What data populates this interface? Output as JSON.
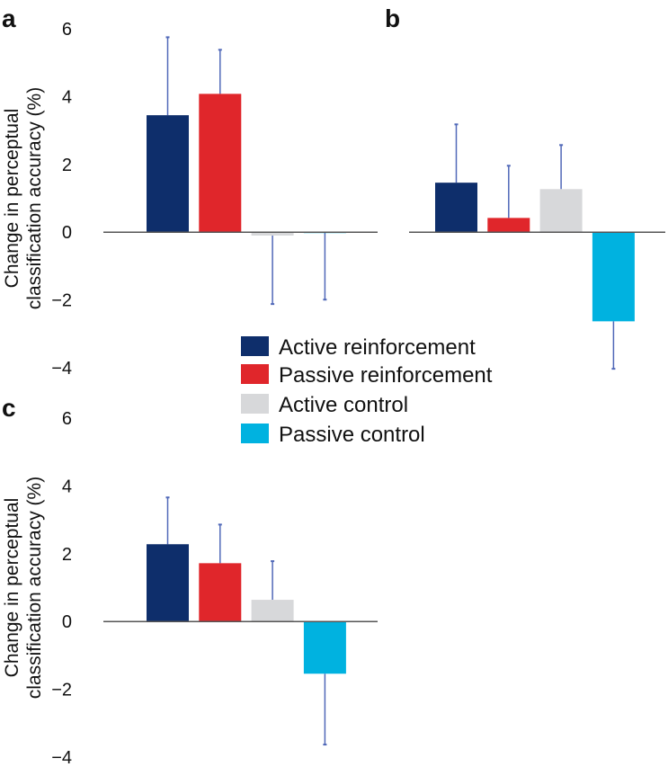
{
  "colors": {
    "Active reinforcement": "#0e2e6b",
    "Passive reinforcement": "#e0262b",
    "Active control": "#d7d8da",
    "Passive control": "#00b2e0",
    "error": "#5068b8",
    "axis": "#555555"
  },
  "ylabel_lines": [
    "Change in perceptual",
    "classification accuracy (%)"
  ],
  "legend": [
    "Active reinforcement",
    "Passive reinforcement",
    "Active control",
    "Passive control"
  ],
  "chart_data": [
    {
      "type": "bar",
      "panel": "a",
      "title": "a",
      "ylabel": "Change in perceptual classification accuracy (%)",
      "ylim": [
        -4,
        6
      ],
      "yticks": [
        "6",
        "4",
        "2",
        "0",
        "−2",
        "−4"
      ],
      "categories": [
        "Active reinforcement",
        "Passive reinforcement",
        "Active control",
        "Passive control"
      ],
      "values": [
        3.45,
        4.08,
        -0.1,
        0.0
      ],
      "error_ends": [
        5.75,
        5.38,
        -2.12,
        -1.99
      ]
    },
    {
      "type": "bar",
      "panel": "b",
      "title": "b",
      "ylim": [
        -4,
        6
      ],
      "categories": [
        "Active reinforcement",
        "Passive reinforcement",
        "Active control",
        "Passive control"
      ],
      "values": [
        1.46,
        0.42,
        1.27,
        -2.63
      ],
      "error_ends": [
        3.18,
        1.96,
        2.57,
        -4.03
      ]
    },
    {
      "type": "bar",
      "panel": "c",
      "title": "c",
      "ylabel": "Change in perceptual classification accuracy (%)",
      "ylim": [
        -4,
        6
      ],
      "yticks": [
        "6",
        "4",
        "2",
        "0",
        "−2",
        "−4"
      ],
      "categories": [
        "Active reinforcement",
        "Passive reinforcement",
        "Active control",
        "Passive control"
      ],
      "values": [
        2.28,
        1.72,
        0.64,
        -1.54
      ],
      "error_ends": [
        3.66,
        2.86,
        1.78,
        -3.63
      ]
    }
  ]
}
